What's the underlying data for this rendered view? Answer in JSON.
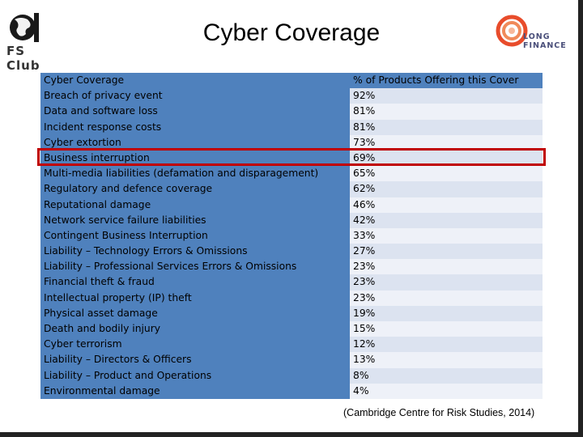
{
  "slide": {
    "title": "Cyber Coverage",
    "fs_logo_text": "FS Club",
    "lf_logo_text_line1": "LONG",
    "lf_logo_text_line2": "FINANCE",
    "source": "(Cambridge Centre for Risk Studies, 2014)"
  },
  "table": {
    "header": {
      "left": "Cyber Coverage",
      "right": "% of Products Offering this Cover"
    },
    "rows": [
      {
        "label": "Breach of privacy event",
        "value": "92%"
      },
      {
        "label": "Data and software loss",
        "value": "81%"
      },
      {
        "label": "Incident response costs",
        "value": "81%"
      },
      {
        "label": "Cyber extortion",
        "value": "73%"
      },
      {
        "label": "Business interruption",
        "value": "69%"
      },
      {
        "label": "Multi-media liabilities (defamation and disparagement)",
        "value": "65%"
      },
      {
        "label": "Regulatory and defence coverage",
        "value": "62%"
      },
      {
        "label": "Reputational damage",
        "value": "46%"
      },
      {
        "label": "Network service failure liabilities",
        "value": "42%"
      },
      {
        "label": "Contingent Business Interruption",
        "value": "33%"
      },
      {
        "label": "Liability – Technology Errors & Omissions",
        "value": "27%"
      },
      {
        "label": "Liability – Professional Services Errors & Omissions",
        "value": "23%"
      },
      {
        "label": "Financial theft & fraud",
        "value": "23%"
      },
      {
        "label": "Intellectual property (IP) theft",
        "value": "23%"
      },
      {
        "label": "Physical asset damage",
        "value": "19%"
      },
      {
        "label": "Death and bodily injury",
        "value": "15%"
      },
      {
        "label": "Cyber terrorism",
        "value": "12%"
      },
      {
        "label": "Liability – Directors & Officers",
        "value": "13%"
      },
      {
        "label": "Liability – Product and Operations",
        "value": "8%"
      },
      {
        "label": "Environmental damage",
        "value": "4%"
      }
    ]
  },
  "colors": {
    "header_blue": "#4f81bd",
    "row_light": "#dce3f0",
    "highlight_red": "#c00000"
  }
}
